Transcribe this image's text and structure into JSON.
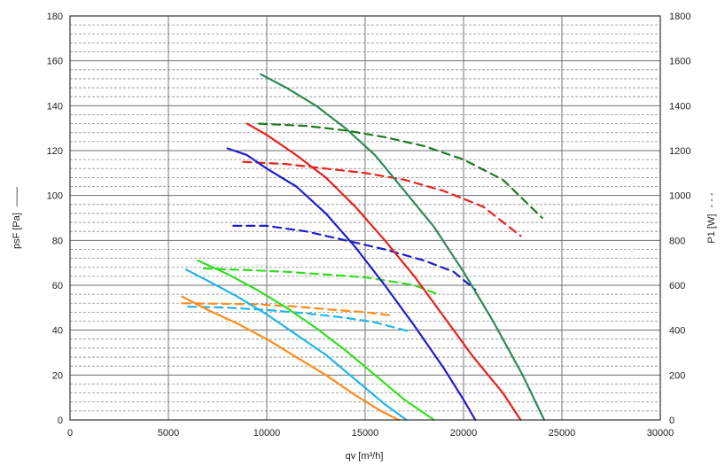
{
  "chart_data": {
    "type": "line",
    "x_axis": {
      "label": "qv [m³/h]",
      "range": [
        0,
        30000
      ],
      "ticks": [
        0,
        5000,
        10000,
        15000,
        20000,
        25000,
        30000
      ]
    },
    "y_left": {
      "label": "psF [Pa]",
      "legend_mark": "——",
      "range": [
        0,
        180
      ],
      "ticks": [
        0,
        20,
        40,
        60,
        80,
        100,
        120,
        140,
        160,
        180
      ]
    },
    "y_right": {
      "label": "P1 [W]",
      "legend_mark": "- - -",
      "range": [
        0,
        1800
      ],
      "ticks": [
        0,
        200,
        400,
        600,
        800,
        1000,
        1200,
        1400,
        1600,
        1800
      ]
    },
    "grid": {
      "vertical": true,
      "horizontal_minor": true
    },
    "pressure_series": [
      {
        "color": "#2e8b57",
        "x": [
          9700,
          11000,
          12500,
          14000,
          15500,
          17000,
          18500,
          20000,
          21500,
          23000,
          24100
        ],
        "y": [
          154,
          148,
          140,
          130,
          118,
          102,
          86,
          66,
          44,
          20,
          0
        ]
      },
      {
        "color": "#e8201a",
        "x": [
          9000,
          10000,
          11500,
          13000,
          14500,
          16000,
          17500,
          19000,
          20500,
          22000,
          22900
        ],
        "y": [
          132,
          127,
          118,
          108,
          95,
          80,
          64,
          46,
          28,
          12,
          0
        ]
      },
      {
        "color": "#1e1ecc",
        "x": [
          8000,
          9000,
          10000,
          11500,
          13000,
          14500,
          16000,
          17500,
          19000,
          20000,
          20600
        ],
        "y": [
          121,
          118,
          112,
          104,
          92,
          77,
          60,
          42,
          23,
          9,
          0
        ]
      },
      {
        "color": "#33dd22",
        "x": [
          6500,
          8000,
          9500,
          11000,
          12500,
          14000,
          15500,
          17000,
          18500
        ],
        "y": [
          71,
          65,
          58,
          50,
          41,
          31,
          20,
          9,
          0
        ]
      },
      {
        "color": "#22b5e8",
        "x": [
          5900,
          7000,
          8500,
          10000,
          11500,
          13000,
          14500,
          16000,
          17100
        ],
        "y": [
          67,
          62,
          55,
          47,
          38,
          29,
          18,
          7,
          0
        ]
      },
      {
        "color": "#ff8c1a",
        "x": [
          5700,
          7000,
          8500,
          10000,
          11500,
          13000,
          14500,
          15800,
          16700
        ],
        "y": [
          55,
          49,
          43,
          36,
          28,
          20,
          11,
          4,
          0
        ]
      }
    ],
    "power_series": [
      {
        "color": "#1e7a1e",
        "x": [
          9600,
          12000,
          14000,
          16000,
          18000,
          20000,
          22000,
          24000
        ],
        "y": [
          1320,
          1310,
          1290,
          1260,
          1220,
          1160,
          1070,
          900
        ]
      },
      {
        "color": "#e8201a",
        "x": [
          8800,
          11000,
          13000,
          15000,
          17000,
          19000,
          21000,
          22900
        ],
        "y": [
          1150,
          1140,
          1120,
          1100,
          1070,
          1020,
          950,
          820
        ]
      },
      {
        "color": "#1e1ecc",
        "x": [
          8300,
          10000,
          12000,
          14000,
          16000,
          18000,
          19500,
          20600
        ],
        "y": [
          865,
          865,
          840,
          800,
          760,
          710,
          660,
          580
        ]
      },
      {
        "color": "#33dd22",
        "x": [
          6800,
          9000,
          11000,
          13000,
          15000,
          16500,
          17500,
          18700
        ],
        "y": [
          675,
          668,
          660,
          648,
          635,
          615,
          600,
          560
        ]
      },
      {
        "color": "#22b5e8",
        "x": [
          6000,
          8000,
          10000,
          12000,
          14000,
          15500,
          17200
        ],
        "y": [
          505,
          500,
          490,
          475,
          455,
          435,
          395
        ]
      },
      {
        "color": "#ff8c1a",
        "x": [
          5700,
          7500,
          9500,
          11500,
          13500,
          15000,
          16400
        ],
        "y": [
          520,
          518,
          515,
          505,
          490,
          480,
          465
        ]
      }
    ]
  }
}
